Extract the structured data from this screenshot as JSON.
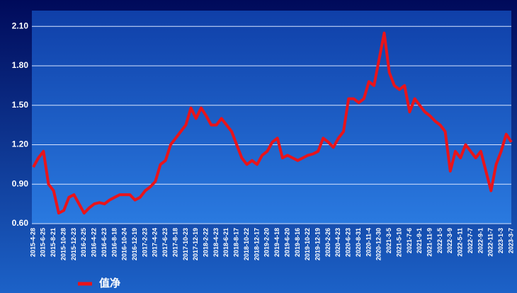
{
  "chart_data": {
    "type": "line",
    "categories": [
      "2015-4-28",
      null,
      "2015-6-25",
      null,
      "2015-8-21",
      null,
      "2015-10-28",
      null,
      "2015-12-23",
      null,
      "2016-2-25",
      null,
      "2016-4-22",
      null,
      "2016-6-23",
      null,
      "2016-8-18",
      null,
      "2016-10-24",
      null,
      "2016-12-19",
      null,
      "2017-2-23",
      null,
      "2017-4-24",
      null,
      "2017-6-23",
      null,
      "2017-8-18",
      null,
      "2017-10-23",
      null,
      "2017-12-19",
      null,
      "2018-2-22",
      null,
      "2018-4-23",
      null,
      "2018-6-21",
      null,
      "2018-8-17",
      null,
      "2018-10-22",
      null,
      "2018-12-17",
      null,
      "2019-2-20",
      null,
      "2019-4-18",
      null,
      "2019-6-20",
      null,
      "2019-8-16",
      null,
      "2019-10-22",
      null,
      "2019-12-19",
      null,
      "2020-2-26",
      null,
      "2020-4-23",
      null,
      "2020-6-23",
      null,
      "2020-8-31",
      null,
      "2020-11-4",
      null,
      "2020-12-30",
      null,
      "2021-3-5",
      null,
      "2021-5-10",
      null,
      "2021-7-6",
      null,
      "2021-9-1",
      null,
      "2021-11-9",
      null,
      "2022-1-5",
      null,
      "2022-3-9",
      null,
      "2022-5-11",
      null,
      "2022-7-7",
      null,
      "2022-9-1",
      null,
      "2022-11-7",
      null,
      "2023-1-3",
      null,
      "2023-3-7"
    ],
    "series": [
      {
        "name": "值净",
        "color": "#e8141b",
        "values": [
          1.03,
          1.1,
          1.15,
          0.9,
          0.85,
          0.68,
          0.7,
          0.8,
          0.82,
          0.75,
          0.68,
          0.72,
          0.75,
          0.76,
          0.75,
          0.78,
          0.8,
          0.82,
          0.82,
          0.82,
          0.78,
          0.8,
          0.85,
          0.88,
          0.92,
          1.05,
          1.08,
          1.2,
          1.25,
          1.3,
          1.35,
          1.48,
          1.4,
          1.48,
          1.42,
          1.35,
          1.35,
          1.4,
          1.35,
          1.3,
          1.2,
          1.1,
          1.05,
          1.08,
          1.05,
          1.12,
          1.15,
          1.22,
          1.25,
          1.1,
          1.12,
          1.1,
          1.08,
          1.1,
          1.12,
          1.13,
          1.15,
          1.25,
          1.22,
          1.18,
          1.25,
          1.3,
          1.55,
          1.55,
          1.52,
          1.55,
          1.68,
          1.65,
          1.85,
          2.05,
          1.75,
          1.65,
          1.62,
          1.65,
          1.45,
          1.55,
          1.5,
          1.45,
          1.42,
          1.38,
          1.35,
          1.3,
          1.0,
          1.15,
          1.1,
          1.2,
          1.15,
          1.1,
          1.15,
          1.0,
          0.85,
          1.05,
          1.15,
          1.28,
          1.22
        ]
      }
    ],
    "ylim": [
      0.6,
      2.22
    ],
    "yticks": [
      {
        "value": 0.6,
        "label": "0.60"
      },
      {
        "value": 0.9,
        "label": "0.90"
      },
      {
        "value": 1.2,
        "label": "1.20"
      },
      {
        "value": 1.5,
        "label": "1.50"
      },
      {
        "value": 1.8,
        "label": "1.80"
      },
      {
        "value": 2.1,
        "label": "2.10"
      }
    ],
    "grid": true
  }
}
